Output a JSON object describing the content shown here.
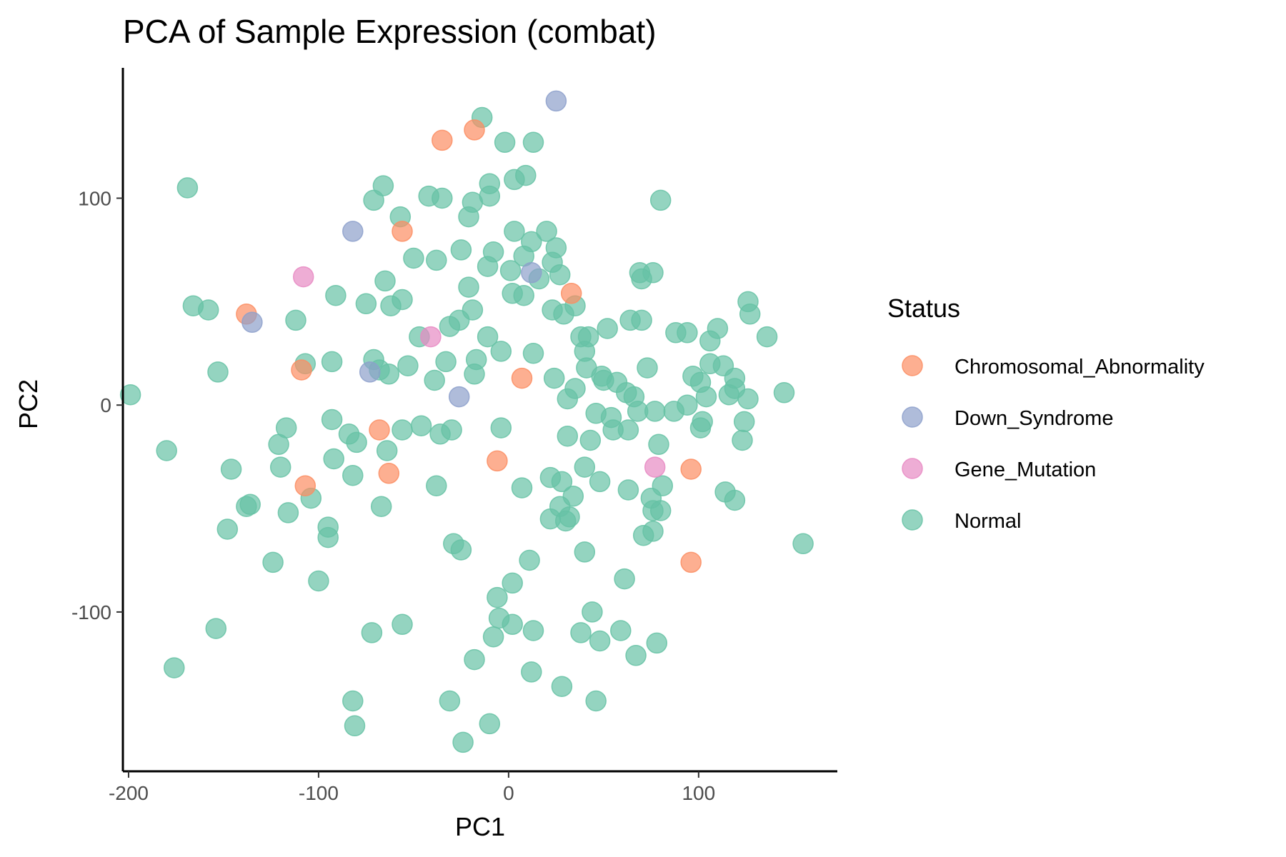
{
  "chart_data": {
    "type": "scatter",
    "title": "PCA of Sample Expression (combat)",
    "xlabel": "PC1",
    "ylabel": "PC2",
    "xlim": [
      -203,
      173
    ],
    "ylim": [
      -177,
      163
    ],
    "xticks": [
      -200,
      -100,
      0,
      100
    ],
    "yticks": [
      -100,
      0,
      100
    ],
    "xtick_labels": [
      "-200",
      "-100",
      "0",
      "100"
    ],
    "ytick_labels": [
      "-100",
      "0",
      "100"
    ],
    "grid": false,
    "legend": {
      "title": "Status",
      "placement": "right"
    },
    "series": [
      {
        "name": "Chromosomal_Abnormality",
        "color": "#FC8D62",
        "points": [
          [
            -35,
            128
          ],
          [
            -18,
            133
          ],
          [
            -56,
            84
          ],
          [
            -138,
            44
          ],
          [
            -109,
            17
          ],
          [
            -107,
            -39
          ],
          [
            -68,
            -12
          ],
          [
            -63,
            -33
          ],
          [
            -6,
            -27
          ],
          [
            7,
            13
          ],
          [
            33,
            54
          ],
          [
            96,
            -31
          ],
          [
            96,
            -76
          ]
        ]
      },
      {
        "name": "Down_Syndrome",
        "color": "#8DA0CB",
        "points": [
          [
            25,
            147
          ],
          [
            -82,
            84
          ],
          [
            12,
            64
          ],
          [
            -135,
            40
          ],
          [
            -73,
            16
          ],
          [
            -26,
            4
          ]
        ]
      },
      {
        "name": "Gene_Mutation",
        "color": "#E78AC3",
        "points": [
          [
            -108,
            62
          ],
          [
            -41,
            33
          ],
          [
            77,
            -30
          ]
        ]
      },
      {
        "name": "Normal",
        "color": "#66C2A5",
        "points": [
          [
            -14,
            139
          ],
          [
            -2,
            127
          ],
          [
            13,
            127
          ],
          [
            -169,
            105
          ],
          [
            -66,
            106
          ],
          [
            -10,
            107
          ],
          [
            3,
            109
          ],
          [
            9,
            111
          ],
          [
            -71,
            99
          ],
          [
            -42,
            101
          ],
          [
            -35,
            100
          ],
          [
            -19,
            98
          ],
          [
            -10,
            101
          ],
          [
            80,
            99
          ],
          [
            -57,
            91
          ],
          [
            -21,
            91
          ],
          [
            3,
            84
          ],
          [
            20,
            84
          ],
          [
            -25,
            75
          ],
          [
            -8,
            74
          ],
          [
            12,
            79
          ],
          [
            25,
            76
          ],
          [
            -50,
            71
          ],
          [
            -38,
            70
          ],
          [
            8,
            72
          ],
          [
            23,
            69
          ],
          [
            -11,
            67
          ],
          [
            1,
            65
          ],
          [
            27,
            63
          ],
          [
            -65,
            60
          ],
          [
            -21,
            57
          ],
          [
            16,
            61
          ],
          [
            69,
            64
          ],
          [
            76,
            64
          ],
          [
            70,
            61
          ],
          [
            -91,
            53
          ],
          [
            -56,
            51
          ],
          [
            2,
            54
          ],
          [
            8,
            53
          ],
          [
            -166,
            48
          ],
          [
            -158,
            46
          ],
          [
            -75,
            49
          ],
          [
            -62,
            48
          ],
          [
            -19,
            46
          ],
          [
            23,
            46
          ],
          [
            29,
            44
          ],
          [
            35,
            48
          ],
          [
            126,
            50
          ],
          [
            127,
            44
          ],
          [
            -112,
            41
          ],
          [
            -26,
            41
          ],
          [
            -31,
            38
          ],
          [
            52,
            37
          ],
          [
            64,
            41
          ],
          [
            70,
            41
          ],
          [
            88,
            35
          ],
          [
            94,
            35
          ],
          [
            110,
            37
          ],
          [
            136,
            33
          ],
          [
            -47,
            33
          ],
          [
            -11,
            33
          ],
          [
            38,
            33
          ],
          [
            42,
            33
          ],
          [
            106,
            31
          ],
          [
            -71,
            22
          ],
          [
            -107,
            20
          ],
          [
            -93,
            21
          ],
          [
            -68,
            17
          ],
          [
            -63,
            15
          ],
          [
            -53,
            19
          ],
          [
            -33,
            21
          ],
          [
            -17,
            22
          ],
          [
            -4,
            26
          ],
          [
            13,
            25
          ],
          [
            40,
            26
          ],
          [
            41,
            18
          ],
          [
            73,
            18
          ],
          [
            -153,
            16
          ],
          [
            -18,
            15
          ],
          [
            -39,
            12
          ],
          [
            24,
            13
          ],
          [
            49,
            14
          ],
          [
            50,
            12
          ],
          [
            57,
            11
          ],
          [
            97,
            14
          ],
          [
            101,
            11
          ],
          [
            113,
            19
          ],
          [
            119,
            13
          ],
          [
            119,
            8
          ],
          [
            116,
            5
          ],
          [
            106,
            20
          ],
          [
            -199,
            5
          ],
          [
            31,
            3
          ],
          [
            35,
            8
          ],
          [
            62,
            6
          ],
          [
            66,
            4
          ],
          [
            104,
            4
          ],
          [
            126,
            3
          ],
          [
            145,
            6
          ],
          [
            46,
            -4
          ],
          [
            54,
            -6
          ],
          [
            68,
            -3
          ],
          [
            77,
            -3
          ],
          [
            87,
            -3
          ],
          [
            94,
            0
          ],
          [
            -93,
            -7
          ],
          [
            -117,
            -11
          ],
          [
            -84,
            -14
          ],
          [
            -80,
            -18
          ],
          [
            -56,
            -12
          ],
          [
            -46,
            -10
          ],
          [
            -36,
            -14
          ],
          [
            -30,
            -12
          ],
          [
            -4,
            -11
          ],
          [
            31,
            -15
          ],
          [
            43,
            -17
          ],
          [
            55,
            -12
          ],
          [
            63,
            -12
          ],
          [
            79,
            -19
          ],
          [
            102,
            -8
          ],
          [
            101,
            -11
          ],
          [
            124,
            -8
          ],
          [
            123,
            -17
          ],
          [
            -180,
            -22
          ],
          [
            -121,
            -19
          ],
          [
            -120,
            -30
          ],
          [
            -146,
            -31
          ],
          [
            -92,
            -26
          ],
          [
            -82,
            -34
          ],
          [
            -64,
            -22
          ],
          [
            -38,
            -39
          ],
          [
            7,
            -40
          ],
          [
            22,
            -35
          ],
          [
            28,
            -37
          ],
          [
            40,
            -30
          ],
          [
            48,
            -37
          ],
          [
            -138,
            -49
          ],
          [
            -136,
            -48
          ],
          [
            -116,
            -52
          ],
          [
            -104,
            -45
          ],
          [
            -67,
            -49
          ],
          [
            22,
            -55
          ],
          [
            27,
            -49
          ],
          [
            30,
            -56
          ],
          [
            34,
            -44
          ],
          [
            32,
            -54
          ],
          [
            63,
            -41
          ],
          [
            75,
            -45
          ],
          [
            76,
            -51
          ],
          [
            80,
            -51
          ],
          [
            81,
            -39
          ],
          [
            114,
            -42
          ],
          [
            119,
            -46
          ],
          [
            -148,
            -60
          ],
          [
            -95,
            -59
          ],
          [
            -95,
            -64
          ],
          [
            -29,
            -67
          ],
          [
            -25,
            -70
          ],
          [
            11,
            -75
          ],
          [
            40,
            -71
          ],
          [
            71,
            -63
          ],
          [
            76,
            -61
          ],
          [
            155,
            -67
          ],
          [
            -124,
            -76
          ],
          [
            -100,
            -85
          ],
          [
            2,
            -86
          ],
          [
            -6,
            -93
          ],
          [
            61,
            -84
          ],
          [
            -154,
            -108
          ],
          [
            -72,
            -110
          ],
          [
            -56,
            -106
          ],
          [
            -5,
            -103
          ],
          [
            2,
            -106
          ],
          [
            -8,
            -112
          ],
          [
            13,
            -109
          ],
          [
            44,
            -100
          ],
          [
            38,
            -110
          ],
          [
            48,
            -114
          ],
          [
            59,
            -109
          ],
          [
            78,
            -115
          ],
          [
            -176,
            -127
          ],
          [
            -18,
            -123
          ],
          [
            67,
            -121
          ],
          [
            12,
            -129
          ],
          [
            28,
            -136
          ],
          [
            -82,
            -143
          ],
          [
            -31,
            -143
          ],
          [
            46,
            -143
          ],
          [
            -81,
            -155
          ],
          [
            -10,
            -154
          ],
          [
            -24,
            -163
          ]
        ]
      }
    ]
  }
}
